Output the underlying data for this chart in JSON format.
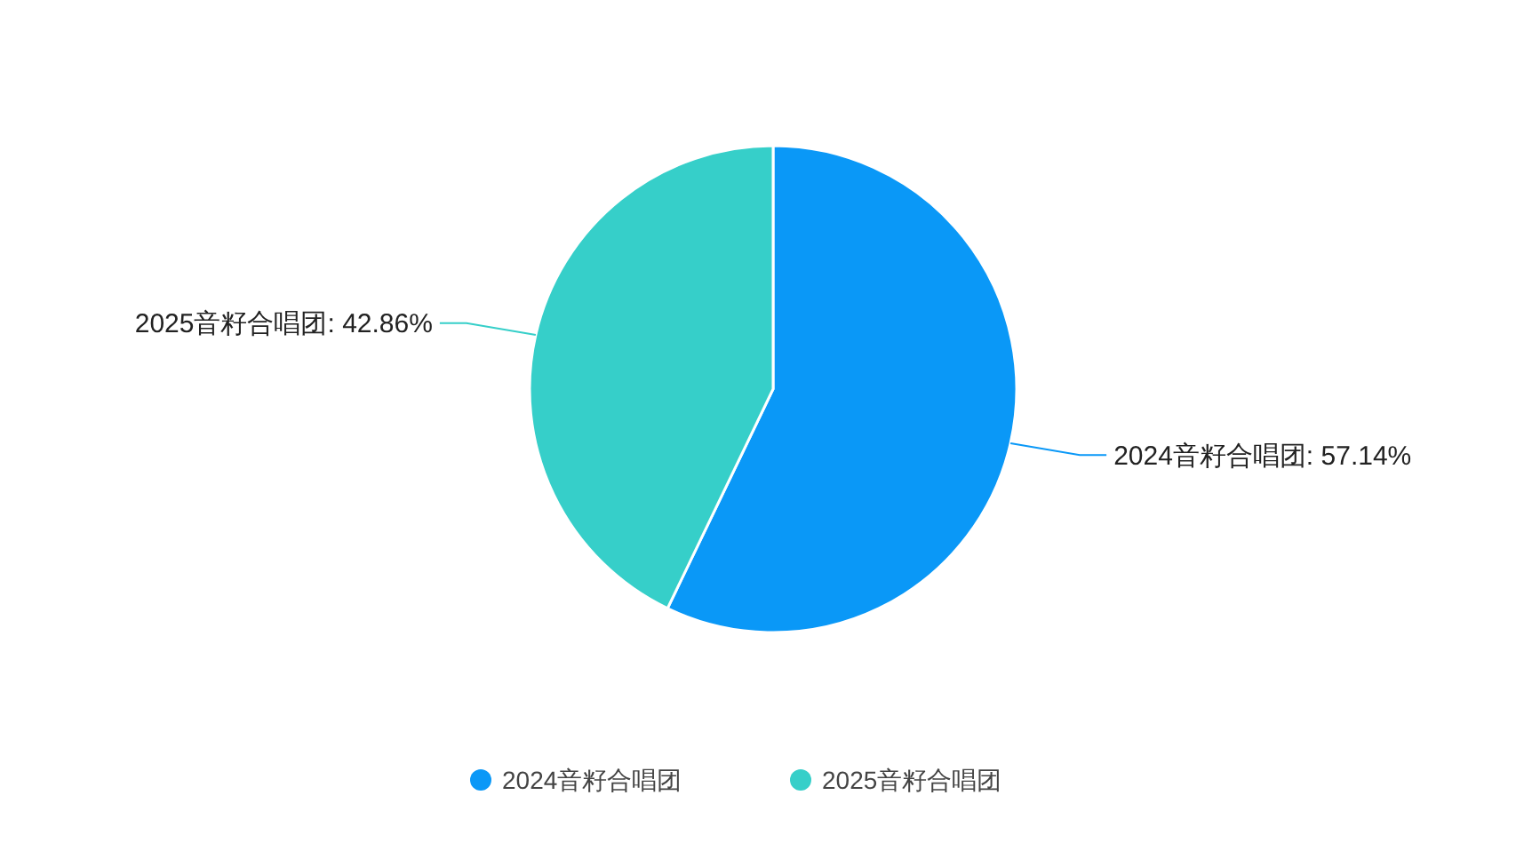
{
  "chart_data": {
    "type": "pie",
    "categories": [
      "2024音籽合唱团",
      "2025音籽合唱团"
    ],
    "values": [
      57.14,
      42.86
    ],
    "colors": [
      "#0a98f7",
      "#36cfc9"
    ],
    "value_labels": [
      "2024音籽合唱团: 57.14%",
      "2025音籽合唱团: 42.86%"
    ],
    "legend": "bottom"
  }
}
